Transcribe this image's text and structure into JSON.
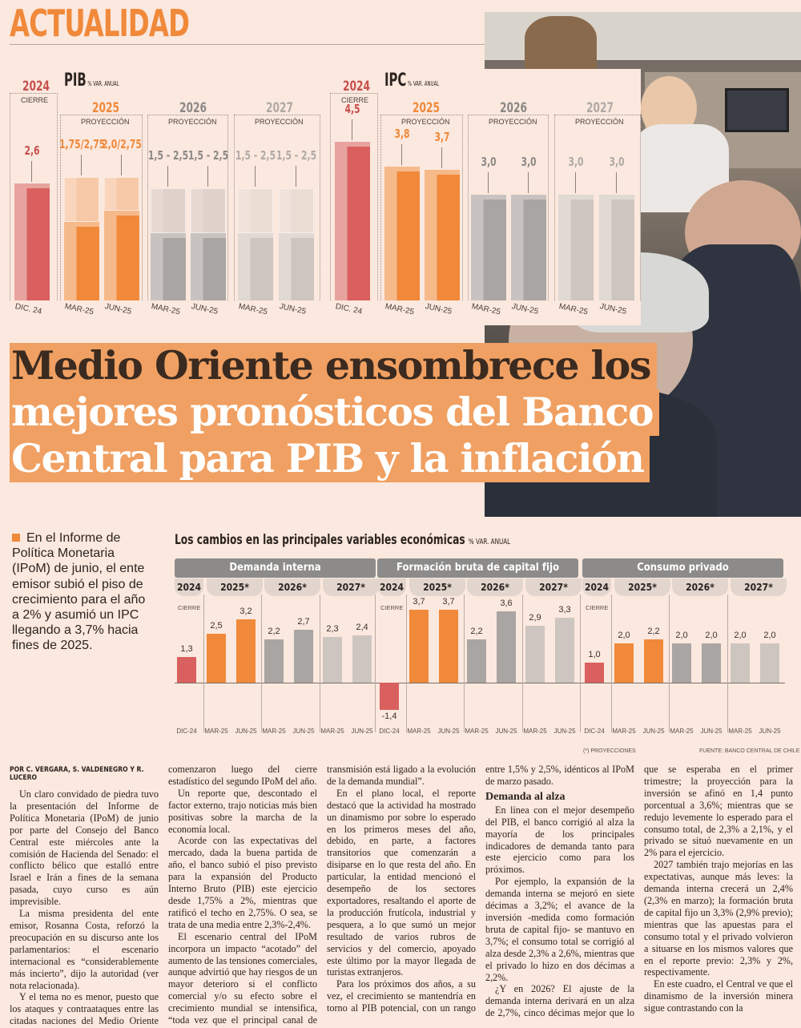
{
  "section": "ACTUALIDAD",
  "headline": {
    "line1": "Medio Oriente ensombrece los",
    "line2": "mejores pronósticos del Banco",
    "line3": "Central para PIB y la inflación"
  },
  "lead": "En el Informe de Política Monetaria (IPoM) de junio, el ente emisor subió el piso de crecimiento para el año a 2% y asumió un IPC llegando a 3,7% hacia fines de 2025.",
  "colors": {
    "accent": "#f0893a",
    "red": "#d9605e",
    "gray2026": "#a9a5a2",
    "gray2027": "#cdc5c0",
    "highlight": "#f0a062"
  },
  "chart_data": [
    {
      "type": "bar",
      "title": "PIB",
      "unit": "% VAR. ANUAL",
      "groups": [
        {
          "year": "2024",
          "label": "CIERRE",
          "bars": [
            {
              "x": "DIC. 24",
              "low": 2.6,
              "high": 2.6,
              "text": "2,6"
            }
          ]
        },
        {
          "year": "2025",
          "label": "PROYECCIÓN",
          "bars": [
            {
              "x": "MAR-25",
              "low": 1.75,
              "high": 2.75,
              "text": "1,75/2,75"
            },
            {
              "x": "JUN-25",
              "low": 2.0,
              "high": 2.75,
              "text": "2,0/2,75"
            }
          ]
        },
        {
          "year": "2026",
          "label": "PROYECCIÓN",
          "bars": [
            {
              "x": "MAR-25",
              "low": 1.5,
              "high": 2.5,
              "text": "1,5 - 2,5"
            },
            {
              "x": "JUN-25",
              "low": 1.5,
              "high": 2.5,
              "text": "1,5 - 2,5"
            }
          ]
        },
        {
          "year": "2027",
          "label": "PROYECCIÓN",
          "bars": [
            {
              "x": "MAR-25",
              "low": 1.5,
              "high": 2.5,
              "text": "1,5 - 2,5"
            },
            {
              "x": "JUN-25",
              "low": 1.5,
              "high": 2.5,
              "text": "1,5 - 2,5"
            }
          ]
        }
      ]
    },
    {
      "type": "bar",
      "title": "IPC",
      "unit": "% VAR. ANUAL",
      "groups": [
        {
          "year": "2024",
          "label": "CIERRE",
          "bars": [
            {
              "x": "DIC. 24",
              "low": 4.5,
              "high": 4.5,
              "text": "4,5"
            }
          ]
        },
        {
          "year": "2025",
          "label": "PROYECCIÓN",
          "bars": [
            {
              "x": "MAR-25",
              "low": 3.8,
              "high": 3.8,
              "text": "3,8"
            },
            {
              "x": "JUN-25",
              "low": 3.7,
              "high": 3.7,
              "text": "3,7"
            }
          ]
        },
        {
          "year": "2026",
          "label": "PROYECCIÓN",
          "bars": [
            {
              "x": "MAR-25",
              "low": 3.0,
              "high": 3.0,
              "text": "3,0"
            },
            {
              "x": "JUN-25",
              "low": 3.0,
              "high": 3.0,
              "text": "3,0"
            }
          ]
        },
        {
          "year": "2027",
          "label": "PROYECCIÓN",
          "bars": [
            {
              "x": "MAR-25",
              "low": 3.0,
              "high": 3.0,
              "text": "3,0"
            },
            {
              "x": "JUN-25",
              "low": 3.0,
              "high": 3.0,
              "text": "3,0"
            }
          ]
        }
      ]
    },
    {
      "type": "bar",
      "title": "Los cambios en las principales variables económicas",
      "unit": "% VAR. ANUAL",
      "years": [
        "2024",
        "2025*",
        "2026*",
        "2027*"
      ],
      "cierre": "CIERRE",
      "x": [
        "DIC-24",
        "MAR-25",
        "JUN-25",
        "MAR-25",
        "JUN-25",
        "MAR-25",
        "JUN-25"
      ],
      "series": [
        {
          "name": "Demanda interna",
          "values": [
            1.3,
            2.5,
            3.2,
            2.2,
            2.7,
            2.3,
            2.4
          ],
          "labels": [
            "1,3",
            "2,5",
            "3,2",
            "2,2",
            "2,7",
            "2,3",
            "2,4"
          ]
        },
        {
          "name": "Formación bruta de capital fijo",
          "values": [
            -1.4,
            3.7,
            3.7,
            2.2,
            3.6,
            2.9,
            3.3
          ],
          "labels": [
            "-1,4",
            "3,7",
            "3,7",
            "2,2",
            "3,6",
            "2,9",
            "3,3"
          ]
        },
        {
          "name": "Consumo privado",
          "values": [
            1.0,
            2.0,
            2.2,
            2.0,
            2.0,
            2.0,
            2.0
          ],
          "labels": [
            "1,0",
            "2,0",
            "2,2",
            "2,0",
            "2,0",
            "2,0",
            "2,0"
          ]
        }
      ],
      "note": "(*) PROYECCIONES",
      "source": "FUENTE: BANCO CENTRAL DE CHILE"
    }
  ],
  "article": {
    "byline": "POR C. VERGARA, S. VALDENEGRO Y R. LUCERO",
    "p1": "Un claro convidado de piedra tuvo la presentación del Informe de Política Monetaria (IPoM) de junio por parte del Consejo del Banco Central este miércoles ante la comisión de Hacienda del Senado: el conflicto bélico que estalló entre Israel e Irán a fines de la semana pasada, cuyo curso es aún imprevisible.",
    "p2": "La misma presidenta del ente emisor, Rosanna Costa, reforzó la preocupación en su discurso ante los parlamentarios: el escenario internacional es “considerablemente más incierto”, dijo la autoridad (ver nota relacionada).",
    "p3": "Y el tema no es menor, puesto que los ataques y contraataques entre las citadas naciones del Medio Oriente comenzaron luego del cierre estadístico del segundo IPoM del año.",
    "p4": "Un reporte que, descontado el factor externo, trajo noticias más bien positivas sobre la marcha de la economía local.",
    "p5": "Acorde con las expectativas del mercado, dada la buena partida de año, el banco subió el piso previsto para la expansión del Producto Interno Bruto (PIB) este ejercicio desde 1,75% a 2%, mientras que ratificó el techo en 2,75%. O sea, se trata de una media entre 2,3%-2,4%.",
    "p6": "El escenario central del IPoM incorpora un impacto “acotado” del aumento de las tensiones comerciales, aunque advirtió que hay riesgos de un mayor deterioro si el conflicto comercial y/o su efecto sobre el crecimiento mundial se intensifica, “toda vez que el principal canal de transmisión está ligado a la evolución de la demanda mundial”.",
    "p7": "En el plano local, el reporte destacó que la actividad ha mostrado un dinamismo por sobre lo esperado en los primeros meses del año, debido, en parte, a factores transitorios que comenzarán a disiparse en lo que resta del año. En particular, la entidad mencionó el desempeño de los sectores exportadores, resaltando el aporte de la producción frutícola, industrial y pesquera, a lo que sumó un mejor resultado de varios rubros de servicios y del comercio, apoyado este último por la mayor llegada de turistas extranjeros.",
    "p8": "Para los próximos dos años, a su vez, el crecimiento se mantendría en torno al PIB potencial, con un rango entre 1,5% y 2,5%, idénticos al IPoM de marzo pasado.",
    "subhead": "Demanda al alza",
    "p9": "En línea con el mejor desempeño del PIB, el banco corrigió al alza la mayoría de los principales indicadores de demanda tanto para este ejercicio como para los próximos.",
    "p10": "Por ejemplo, la expansión de la demanda interna se mejoró en siete décimas a 3,2%; el avance de la inversión -medida como formación bruta de capital fijo- se mantuvo en 3,7%; el consumo total se corrigió al alza desde 2,3% a 2,6%, mientras que el privado lo hizo en dos décimas a 2,2%.",
    "p11": "¿Y en 2026? El ajuste de la demanda interna derivará en un alza de 2,7%, cinco décimas mejor que lo que se esperaba en el primer trimestre; la proyección para la inversión se afinó en 1,4 punto porcentual a 3,6%; mientras que se redujo levemente lo esperado para el consumo total, de 2,3% a 2,1%, y el privado se situó nuevamente en un 2% para el ejercicio.",
    "p12": "2027 también trajo mejorías en las expectativas, aunque más leves: la demanda interna crecerá un 2,4% (2,3% en marzo); la formación bruta de capital fijo un 3,3% (2,9% previo); mientras que las apuestas para el consumo total y el privado volvieron a situarse en los mismos valores que en el reporte previo: 2,3% y 2%, respectivamente.",
    "p13": "En este cuadro, el Central ve que el dinamismo de la inversión minera sigue contrastando con la"
  }
}
